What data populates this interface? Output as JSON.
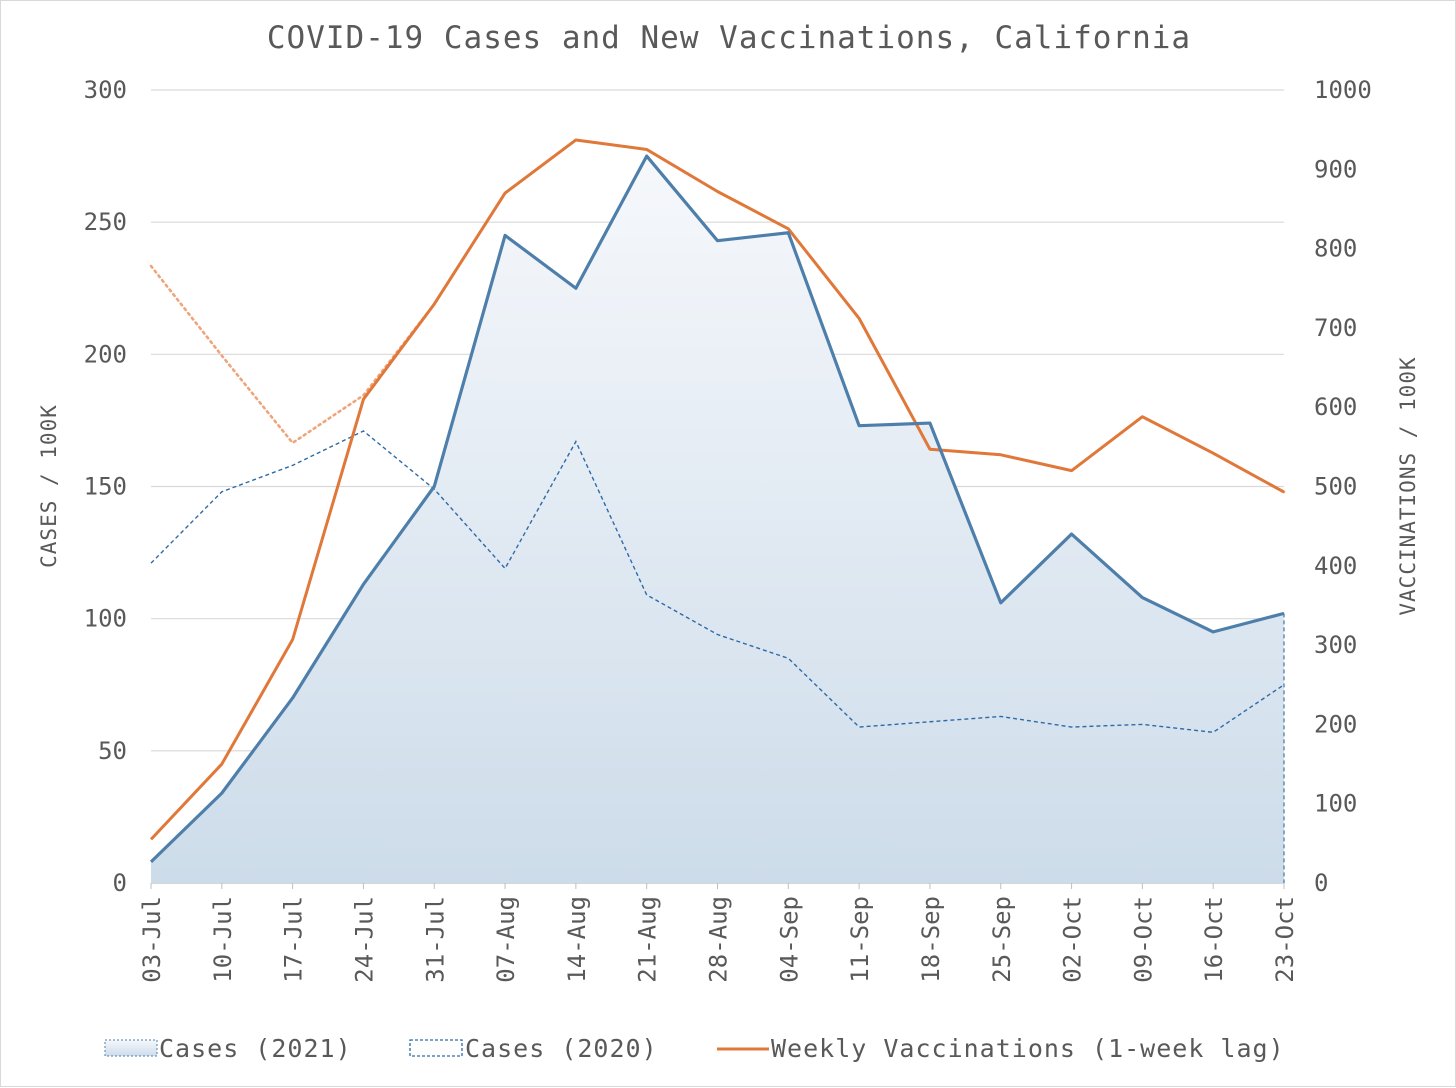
{
  "chart_data": {
    "type": "line",
    "title": "COVID-19 Cases and New Vaccinations, California",
    "categories": [
      "03-Jul",
      "10-Jul",
      "17-Jul",
      "24-Jul",
      "31-Jul",
      "07-Aug",
      "14-Aug",
      "21-Aug",
      "28-Aug",
      "04-Sep",
      "11-Sep",
      "18-Sep",
      "25-Sep",
      "02-Oct",
      "09-Oct",
      "16-Oct",
      "23-Oct"
    ],
    "y_left": {
      "label": "CASES / 100K",
      "range": [
        0,
        300
      ],
      "ticks": [
        0,
        50,
        100,
        150,
        200,
        250,
        300
      ]
    },
    "y_right": {
      "label": "VACCINATIONS / 100K",
      "range": [
        0,
        1000
      ],
      "ticks": [
        0,
        100,
        200,
        300,
        400,
        500,
        600,
        700,
        800,
        900,
        1000
      ]
    },
    "grid": "horizontal",
    "legend_position": "bottom",
    "series": [
      {
        "name": "Cases (2021)",
        "type": "area",
        "axis": "left",
        "color": "#4e7fab",
        "fill_top": "#f6f8fb",
        "fill_bottom": "#cddcea",
        "values": [
          8,
          34,
          70,
          113,
          150,
          245,
          225,
          275,
          243,
          246,
          173,
          174,
          106,
          132,
          108,
          95,
          102
        ]
      },
      {
        "name": "Cases (2020)",
        "type": "line",
        "style": "dashed",
        "axis": "left",
        "color": "#2e6aa8",
        "values": [
          121,
          148,
          158,
          171,
          149,
          119,
          167,
          109,
          94,
          85,
          59,
          61,
          63,
          59,
          60,
          57,
          75
        ]
      },
      {
        "name": "Weekly Vaccinations (1-week lag)",
        "type": "line",
        "axis": "right",
        "color": "#e0783a",
        "values": [
          55,
          150,
          307,
          610,
          730,
          870,
          937,
          925,
          872,
          825,
          712,
          547,
          540,
          520,
          588,
          542,
          493
        ]
      },
      {
        "type": "line",
        "style": "dotted",
        "axis": "right",
        "color": "#f0a47a",
        "values": [
          778,
          665,
          555,
          615,
          730,
          870,
          937,
          925,
          872,
          825,
          712,
          547,
          540,
          520,
          588,
          542,
          493
        ]
      }
    ]
  }
}
